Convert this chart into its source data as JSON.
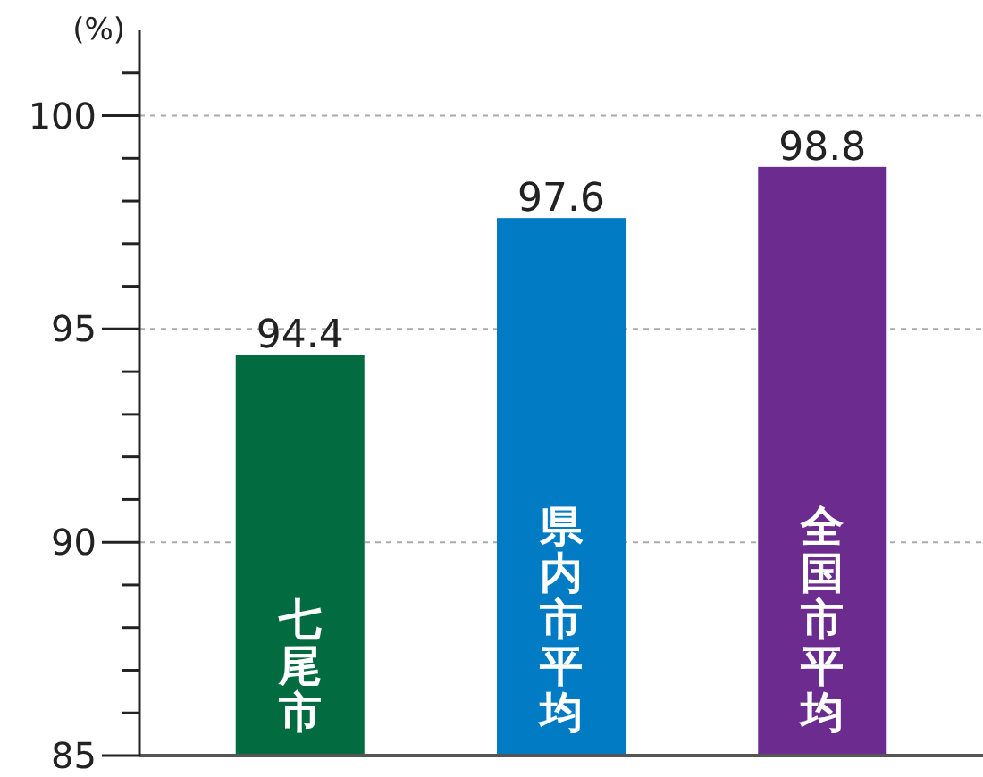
{
  "chart_data": {
    "type": "bar",
    "ylabel": "(%)",
    "categories": [
      "七尾市",
      "県内市平均",
      "全国市平均"
    ],
    "values": [
      94.4,
      97.6,
      98.8
    ],
    "colors": [
      "#036b40",
      "#007bc4",
      "#6c2b8e"
    ],
    "ylim": [
      85,
      102
    ],
    "yticks": [
      85,
      {
        "value": 86,
        "label": null
      },
      {
        "value": 87,
        "label": null
      },
      {
        "value": 88,
        "label": null
      },
      {
        "value": 89,
        "label": null
      },
      90,
      {
        "value": 91,
        "label": null
      },
      {
        "value": 92,
        "label": null
      },
      {
        "value": 93,
        "label": null
      },
      {
        "value": 94,
        "label": null
      },
      95,
      {
        "value": 96,
        "label": null
      },
      {
        "value": 97,
        "label": null
      },
      {
        "value": 98,
        "label": null
      },
      {
        "value": 99,
        "label": null
      },
      100,
      {
        "value": 101,
        "label": null
      }
    ],
    "grid": "y",
    "data_labels": true
  }
}
